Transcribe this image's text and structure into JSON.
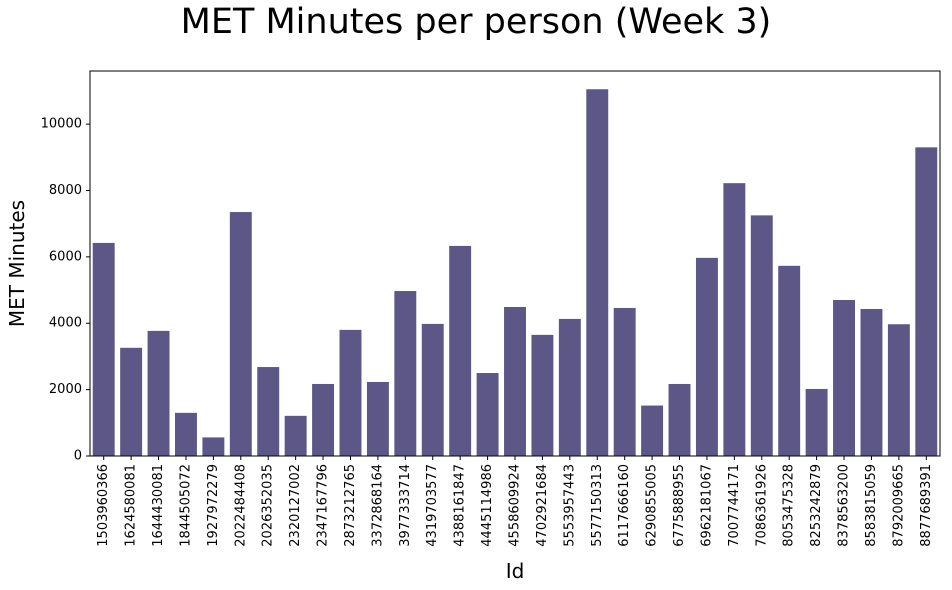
{
  "chart_data": {
    "type": "bar",
    "title": "MET Minutes per person (Week 3)",
    "xlabel": "Id",
    "ylabel": "MET Minutes",
    "ylim": [
      0,
      11600
    ],
    "yticks": [
      0,
      2000,
      4000,
      6000,
      8000,
      10000
    ],
    "bar_color": "#5c5787",
    "grid": false,
    "categories": [
      "1503960366",
      "1624580081",
      "1644430081",
      "1844505072",
      "1927972279",
      "2022484408",
      "2026352035",
      "2320127002",
      "2347167796",
      "2873212765",
      "3372868164",
      "3977333714",
      "4319703577",
      "4388161847",
      "4445114986",
      "4558609924",
      "4702921684",
      "5553957443",
      "5577150313",
      "6117666160",
      "6290855005",
      "6775888955",
      "6962181067",
      "7007744171",
      "7086361926",
      "8053475328",
      "8253242879",
      "8378563200",
      "8583815059",
      "8792009665",
      "8877689391"
    ],
    "values": [
      6420,
      3260,
      3770,
      1300,
      560,
      7350,
      2680,
      1210,
      2170,
      3800,
      2230,
      4970,
      3980,
      6330,
      2500,
      4490,
      3650,
      4130,
      11050,
      4460,
      1520,
      2170,
      5970,
      8220,
      7250,
      5730,
      2020,
      4700,
      4430,
      3970,
      9300
    ]
  }
}
